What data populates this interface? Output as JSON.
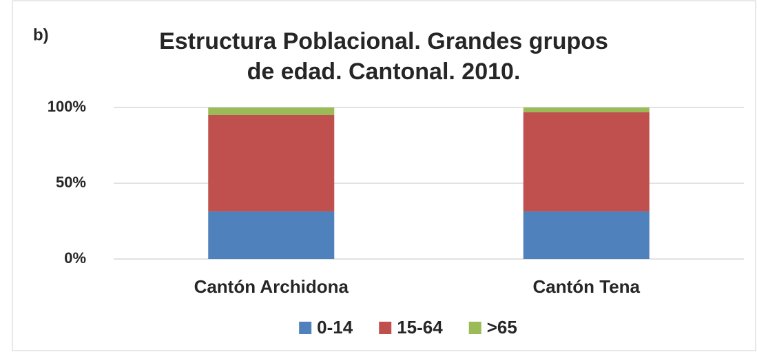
{
  "chart_data": {
    "type": "stacked_bar",
    "annotation": "b)",
    "title": [
      "Estructura Poblacional. Grandes grupos",
      "de edad. Cantonal. 2010."
    ],
    "categories": [
      "Cantón Archidona",
      "Cantón Tena"
    ],
    "series": [
      {
        "name": "0-14",
        "color": "#4f81bd",
        "values": [
          31.4,
          31.4
        ]
      },
      {
        "name": "15-64",
        "color": "#c0504d",
        "values": [
          63.6,
          65.4
        ]
      },
      {
        "name": ">65",
        "color": "#9bbb59",
        "values": [
          5.0,
          3.2
        ]
      }
    ],
    "ylim": [
      0,
      100
    ],
    "yticks": [
      {
        "value": 0,
        "label": "0%"
      },
      {
        "value": 50,
        "label": "50%"
      },
      {
        "value": 100,
        "label": "100%"
      }
    ],
    "grid": true,
    "legend": "bottom"
  }
}
